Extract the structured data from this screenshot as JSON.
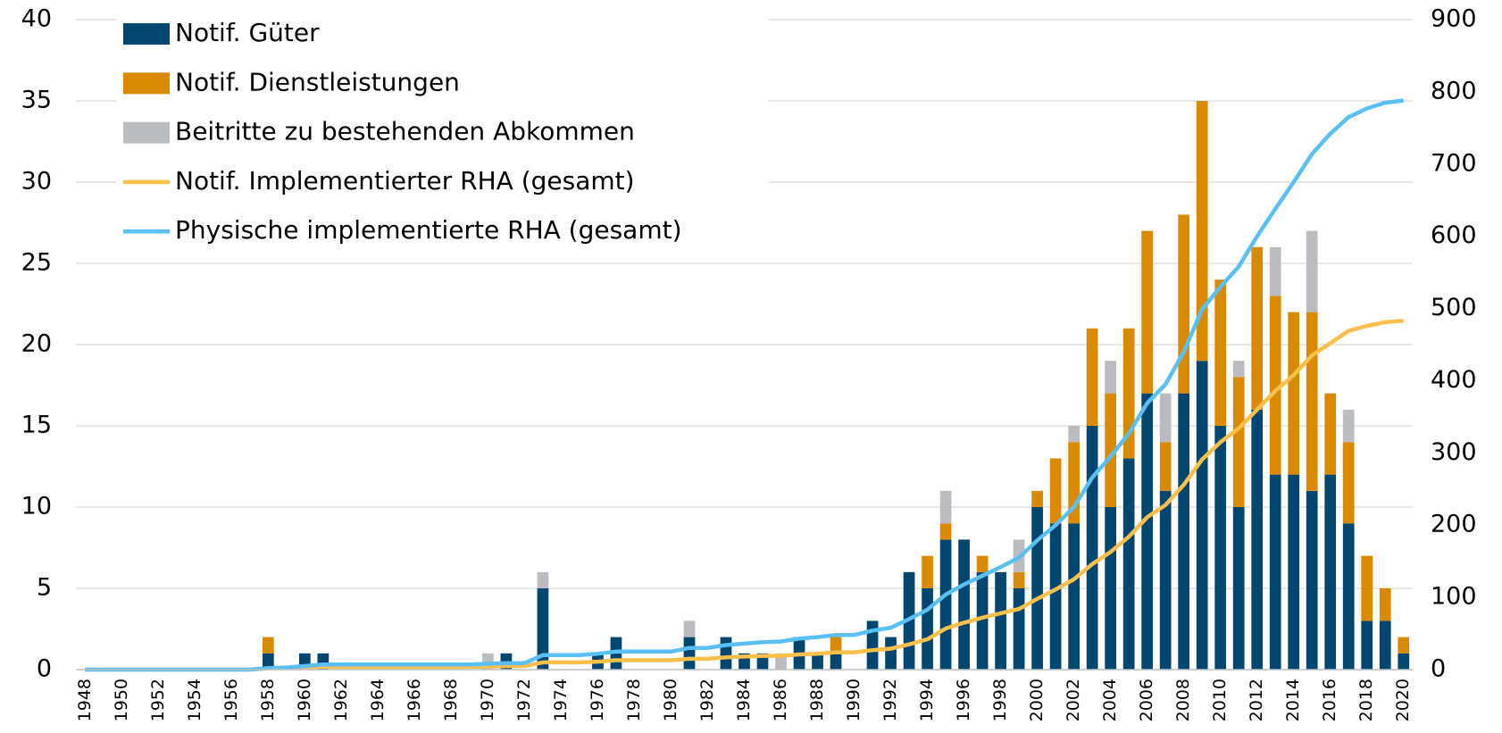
{
  "chart_data": {
    "type": "bar",
    "stacked": true,
    "categories": [
      "1948",
      null,
      "1950",
      null,
      "1952",
      null,
      "1954",
      null,
      "1956",
      null,
      "1958",
      null,
      "1960",
      null,
      "1962",
      null,
      "1964",
      null,
      "1966",
      null,
      "1968",
      null,
      "1970",
      null,
      "1972",
      null,
      "1974",
      null,
      "1976",
      null,
      "1978",
      null,
      "1980",
      null,
      "1982",
      null,
      "1984",
      null,
      "1986",
      null,
      "1988",
      null,
      "1990",
      null,
      "1992",
      null,
      "1994",
      null,
      "1996",
      null,
      "1998",
      null,
      "2000",
      null,
      "2002",
      null,
      "2004",
      null,
      "2006",
      null,
      "2008",
      null,
      "2010",
      null,
      "2012",
      null,
      "2014",
      null,
      "2016",
      null,
      "2018",
      null,
      "2020"
    ],
    "series": [
      {
        "name": "Notif. Güter",
        "type": "bar",
        "color": "#00466e",
        "values": [
          0,
          0,
          0,
          0,
          0,
          0,
          0,
          0,
          0,
          0,
          1,
          0,
          1,
          1,
          0,
          0,
          0,
          0,
          0,
          0,
          0,
          0,
          0,
          1,
          0,
          5,
          0,
          0,
          1,
          2,
          0,
          0,
          0,
          2,
          0,
          2,
          1,
          1,
          0,
          2,
          1,
          1,
          0,
          3,
          2,
          6,
          5,
          8,
          8,
          6,
          6,
          5,
          10,
          9,
          9,
          15,
          10,
          13,
          17,
          11,
          17,
          19,
          15,
          10,
          16,
          12,
          12,
          11,
          12,
          9,
          3,
          3,
          1
        ]
      },
      {
        "name": "Notif. Dienstleistungen",
        "type": "bar",
        "color": "#d98a00",
        "values": [
          0,
          0,
          0,
          0,
          0,
          0,
          0,
          0,
          0,
          0,
          1,
          0,
          0,
          0,
          0,
          0,
          0,
          0,
          0,
          0,
          0,
          0,
          0,
          0,
          0,
          0,
          0,
          0,
          0,
          0,
          0,
          0,
          0,
          0,
          0,
          0,
          0,
          0,
          0,
          0,
          0,
          1,
          0,
          0,
          0,
          0,
          2,
          1,
          0,
          1,
          0,
          1,
          1,
          4,
          5,
          6,
          7,
          8,
          10,
          3,
          11,
          16,
          9,
          8,
          10,
          11,
          10,
          11,
          5,
          5,
          4,
          2,
          1
        ]
      },
      {
        "name": "Beitritte zu bestehenden Abkommen",
        "type": "bar",
        "color": "#bbbcbf",
        "values": [
          0,
          0,
          0,
          0,
          0,
          0,
          0,
          0,
          0,
          0,
          0,
          0,
          0,
          0,
          0,
          0,
          0,
          0,
          0,
          0,
          0,
          0,
          1,
          0,
          0,
          1,
          0,
          0,
          0,
          0,
          0,
          0,
          0,
          1,
          0,
          0,
          0,
          0,
          1,
          0,
          0,
          0,
          0,
          0,
          0,
          0,
          0,
          2,
          0,
          0,
          0,
          2,
          0,
          0,
          1,
          0,
          2,
          0,
          0,
          3,
          0,
          0,
          0,
          1,
          0,
          3,
          0,
          5,
          0,
          2,
          0,
          0,
          0
        ]
      },
      {
        "name": "Notif. Implementierter RHA (gesamt)",
        "type": "line",
        "axis": "y2",
        "color": "#fbbf4c",
        "values": [
          0,
          0,
          0,
          0,
          0,
          0,
          0,
          0,
          0,
          0,
          2,
          2,
          3,
          4,
          4,
          4,
          4,
          4,
          4,
          4,
          4,
          4,
          4,
          5,
          5,
          10,
          10,
          10,
          11,
          13,
          13,
          13,
          13,
          15,
          15,
          17,
          18,
          19,
          19,
          21,
          22,
          24,
          24,
          27,
          29,
          35,
          42,
          57,
          65,
          72,
          78,
          84,
          98,
          111,
          125,
          146,
          163,
          184,
          211,
          228,
          256,
          291,
          315,
          334,
          360,
          386,
          408,
          435,
          452,
          469,
          476,
          481,
          483
        ]
      },
      {
        "name": "Physische implementierte RHA (gesamt)",
        "type": "line",
        "axis": "y2",
        "color": "#5ac0f4",
        "values": [
          0,
          0,
          0,
          0,
          0,
          0,
          0,
          0,
          0,
          0,
          2,
          3,
          5,
          7,
          7,
          7,
          7,
          7,
          7,
          7,
          7,
          7,
          8,
          9,
          9,
          20,
          20,
          20,
          22,
          25,
          25,
          25,
          25,
          30,
          30,
          34,
          36,
          38,
          39,
          43,
          45,
          48,
          48,
          54,
          58,
          70,
          83,
          104,
          118,
          130,
          142,
          155,
          179,
          200,
          225,
          266,
          295,
          327,
          369,
          395,
          440,
          499,
          530,
          558,
          600,
          638,
          675,
          714,
          742,
          765,
          777,
          785,
          788
        ]
      }
    ],
    "ylim": [
      0,
      40
    ],
    "yticks": [
      0,
      5,
      10,
      15,
      20,
      25,
      30,
      35,
      40
    ],
    "y2lim": [
      0,
      900
    ],
    "y2ticks": [
      0,
      100,
      200,
      300,
      400,
      500,
      600,
      700,
      800,
      900
    ],
    "grid": true,
    "legend": "top-left"
  }
}
